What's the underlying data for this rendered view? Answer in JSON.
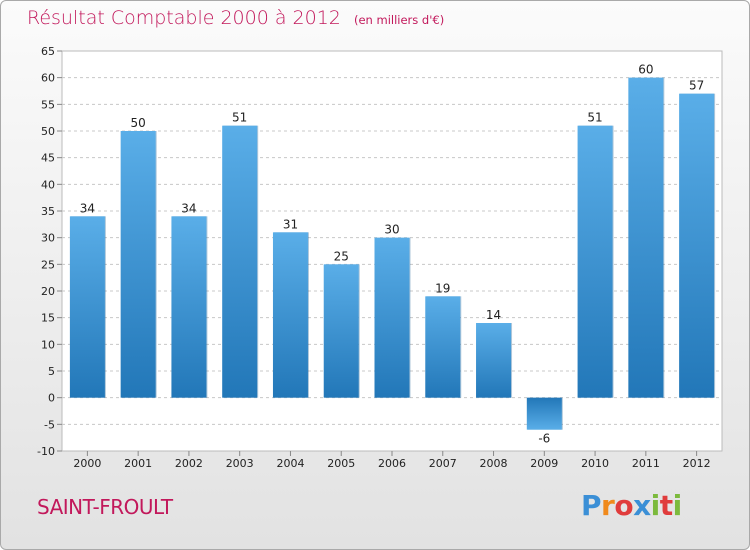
{
  "header": {
    "title": "Résultat Comptable 2000 à 2012",
    "subtitle": "(en milliers d'€)"
  },
  "footer": {
    "city": "SAINT-FROULT",
    "brand": "Proxiti",
    "brand_colors": [
      "#3b8fd6",
      "#f08a1c",
      "#e03c3c",
      "#3b8fd6",
      "#7cba3d",
      "#e03c3c",
      "#7cba3d"
    ]
  },
  "colors": {
    "title": "#c2185b",
    "bar_light": "#5aaee8",
    "bar_dark": "#2277b8",
    "grid": "#c8c8c8",
    "plot_bg": "#ffffff"
  },
  "chart_data": {
    "type": "bar",
    "title": "Résultat Comptable 2000 à 2012",
    "subtitle": "(en milliers d'€)",
    "xlabel": "",
    "ylabel": "",
    "ylim": [
      -10,
      65
    ],
    "ytick_step": 5,
    "grid": true,
    "categories": [
      "2000",
      "2001",
      "2002",
      "2003",
      "2004",
      "2005",
      "2006",
      "2007",
      "2008",
      "2009",
      "2010",
      "2011",
      "2012"
    ],
    "values": [
      34,
      50,
      34,
      51,
      31,
      25,
      30,
      19,
      14,
      -6,
      51,
      60,
      57
    ]
  }
}
